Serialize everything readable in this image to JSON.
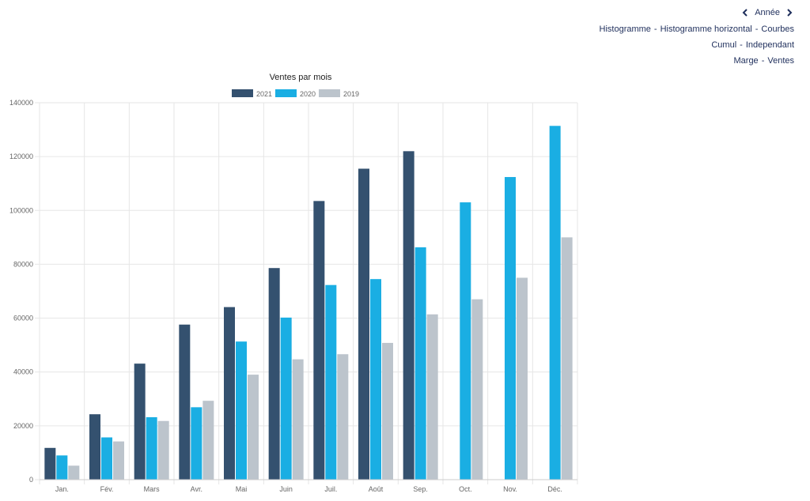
{
  "controls": {
    "year_label": "Année",
    "line1": {
      "a": "Histogramme",
      "b": "Histogramme horizontal",
      "c": "Courbes"
    },
    "line2": {
      "a": "Cumul",
      "b": "Independant"
    },
    "line3": {
      "a": "Marge",
      "b": "Ventes"
    },
    "separator": "-"
  },
  "colors": {
    "series_2021": "#34516f",
    "series_2020": "#1aaee3",
    "series_2019": "#bcc4cc",
    "grid": "#e6e6e6",
    "axis_text": "#666666",
    "title_text": "#222222"
  },
  "chart_data": {
    "type": "bar",
    "title": "Ventes par mois",
    "categories": [
      "Jan.",
      "Fév.",
      "Mars",
      "Avr.",
      "Mai",
      "Juin",
      "Juil.",
      "Août",
      "Sep.",
      "Oct.",
      "Nov.",
      "Déc."
    ],
    "series": [
      {
        "name": "2021",
        "values": [
          11800,
          24300,
          43100,
          57600,
          64100,
          78600,
          103500,
          115500,
          122000,
          null,
          null,
          null
        ]
      },
      {
        "name": "2020",
        "values": [
          9000,
          15700,
          23200,
          26900,
          51300,
          60200,
          72300,
          74500,
          86300,
          103000,
          112400,
          131400
        ]
      },
      {
        "name": "2019",
        "values": [
          5200,
          14200,
          21800,
          29300,
          39000,
          44700,
          46600,
          50800,
          61400,
          67000,
          75000,
          90000
        ]
      }
    ],
    "yticks": [
      "0",
      "20000",
      "40000",
      "60000",
      "80000",
      "100000",
      "120000",
      "140000"
    ],
    "ylim": [
      0,
      140000
    ],
    "xlabel": "",
    "ylabel": "",
    "legend_position": "top-center",
    "grid": true
  }
}
